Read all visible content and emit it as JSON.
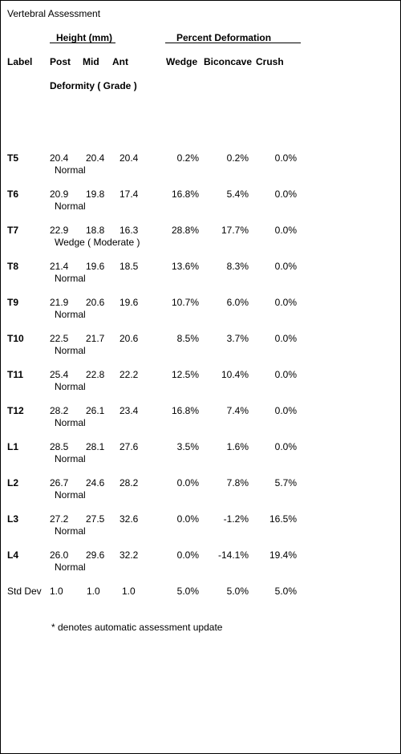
{
  "title": "Vertebral Assessment",
  "groups": {
    "height": "Height (mm)",
    "percent": "Percent Deformation"
  },
  "columns": {
    "label": "Label",
    "post": "Post",
    "mid": "Mid",
    "ant": "Ant",
    "wedge": "Wedge",
    "biconcave": "Biconcave",
    "crush": "Crush",
    "deformity": "Deformity ( Grade )"
  },
  "rows": [
    {
      "label": "T5",
      "post": "20.4",
      "mid": "20.4",
      "ant": "20.4",
      "wedge": "0.2%",
      "biconcave": "0.2%",
      "crush": "0.0%",
      "grade": "Normal"
    },
    {
      "label": "T6",
      "post": "20.9",
      "mid": "19.8",
      "ant": "17.4",
      "wedge": "16.8%",
      "biconcave": "5.4%",
      "crush": "0.0%",
      "grade": "Normal"
    },
    {
      "label": "T7",
      "post": "22.9",
      "mid": "18.8",
      "ant": "16.3",
      "wedge": "28.8%",
      "biconcave": "17.7%",
      "crush": "0.0%",
      "grade": "Wedge ( Moderate )"
    },
    {
      "label": "T8",
      "post": "21.4",
      "mid": "19.6",
      "ant": "18.5",
      "wedge": "13.6%",
      "biconcave": "8.3%",
      "crush": "0.0%",
      "grade": "Normal"
    },
    {
      "label": "T9",
      "post": "21.9",
      "mid": "20.6",
      "ant": "19.6",
      "wedge": "10.7%",
      "biconcave": "6.0%",
      "crush": "0.0%",
      "grade": "Normal"
    },
    {
      "label": "T10",
      "post": "22.5",
      "mid": "21.7",
      "ant": "20.6",
      "wedge": "8.5%",
      "biconcave": "3.7%",
      "crush": "0.0%",
      "grade": "Normal"
    },
    {
      "label": "T11",
      "post": "25.4",
      "mid": "22.8",
      "ant": "22.2",
      "wedge": "12.5%",
      "biconcave": "10.4%",
      "crush": "0.0%",
      "grade": "Normal"
    },
    {
      "label": "T12",
      "post": "28.2",
      "mid": "26.1",
      "ant": "23.4",
      "wedge": "16.8%",
      "biconcave": "7.4%",
      "crush": "0.0%",
      "grade": "Normal"
    },
    {
      "label": "L1",
      "post": "28.5",
      "mid": "28.1",
      "ant": "27.6",
      "wedge": "3.5%",
      "biconcave": "1.6%",
      "crush": "0.0%",
      "grade": "Normal"
    },
    {
      "label": "L2",
      "post": "26.7",
      "mid": "24.6",
      "ant": "28.2",
      "wedge": "0.0%",
      "biconcave": "7.8%",
      "crush": "5.7%",
      "grade": "Normal"
    },
    {
      "label": "L3",
      "post": "27.2",
      "mid": "27.5",
      "ant": "32.6",
      "wedge": "0.0%",
      "biconcave": "-1.2%",
      "crush": "16.5%",
      "grade": "Normal"
    },
    {
      "label": "L4",
      "post": "26.0",
      "mid": "29.6",
      "ant": "32.2",
      "wedge": "0.0%",
      "biconcave": "-14.1%",
      "crush": "19.4%",
      "grade": "Normal"
    }
  ],
  "std_dev": {
    "label": "Std Dev",
    "post": "1.0",
    "mid": "1.0",
    "ant": "1.0",
    "wedge": "5.0%",
    "biconcave": "5.0%",
    "crush": "5.0%"
  },
  "footnote": "* denotes automatic assessment update"
}
